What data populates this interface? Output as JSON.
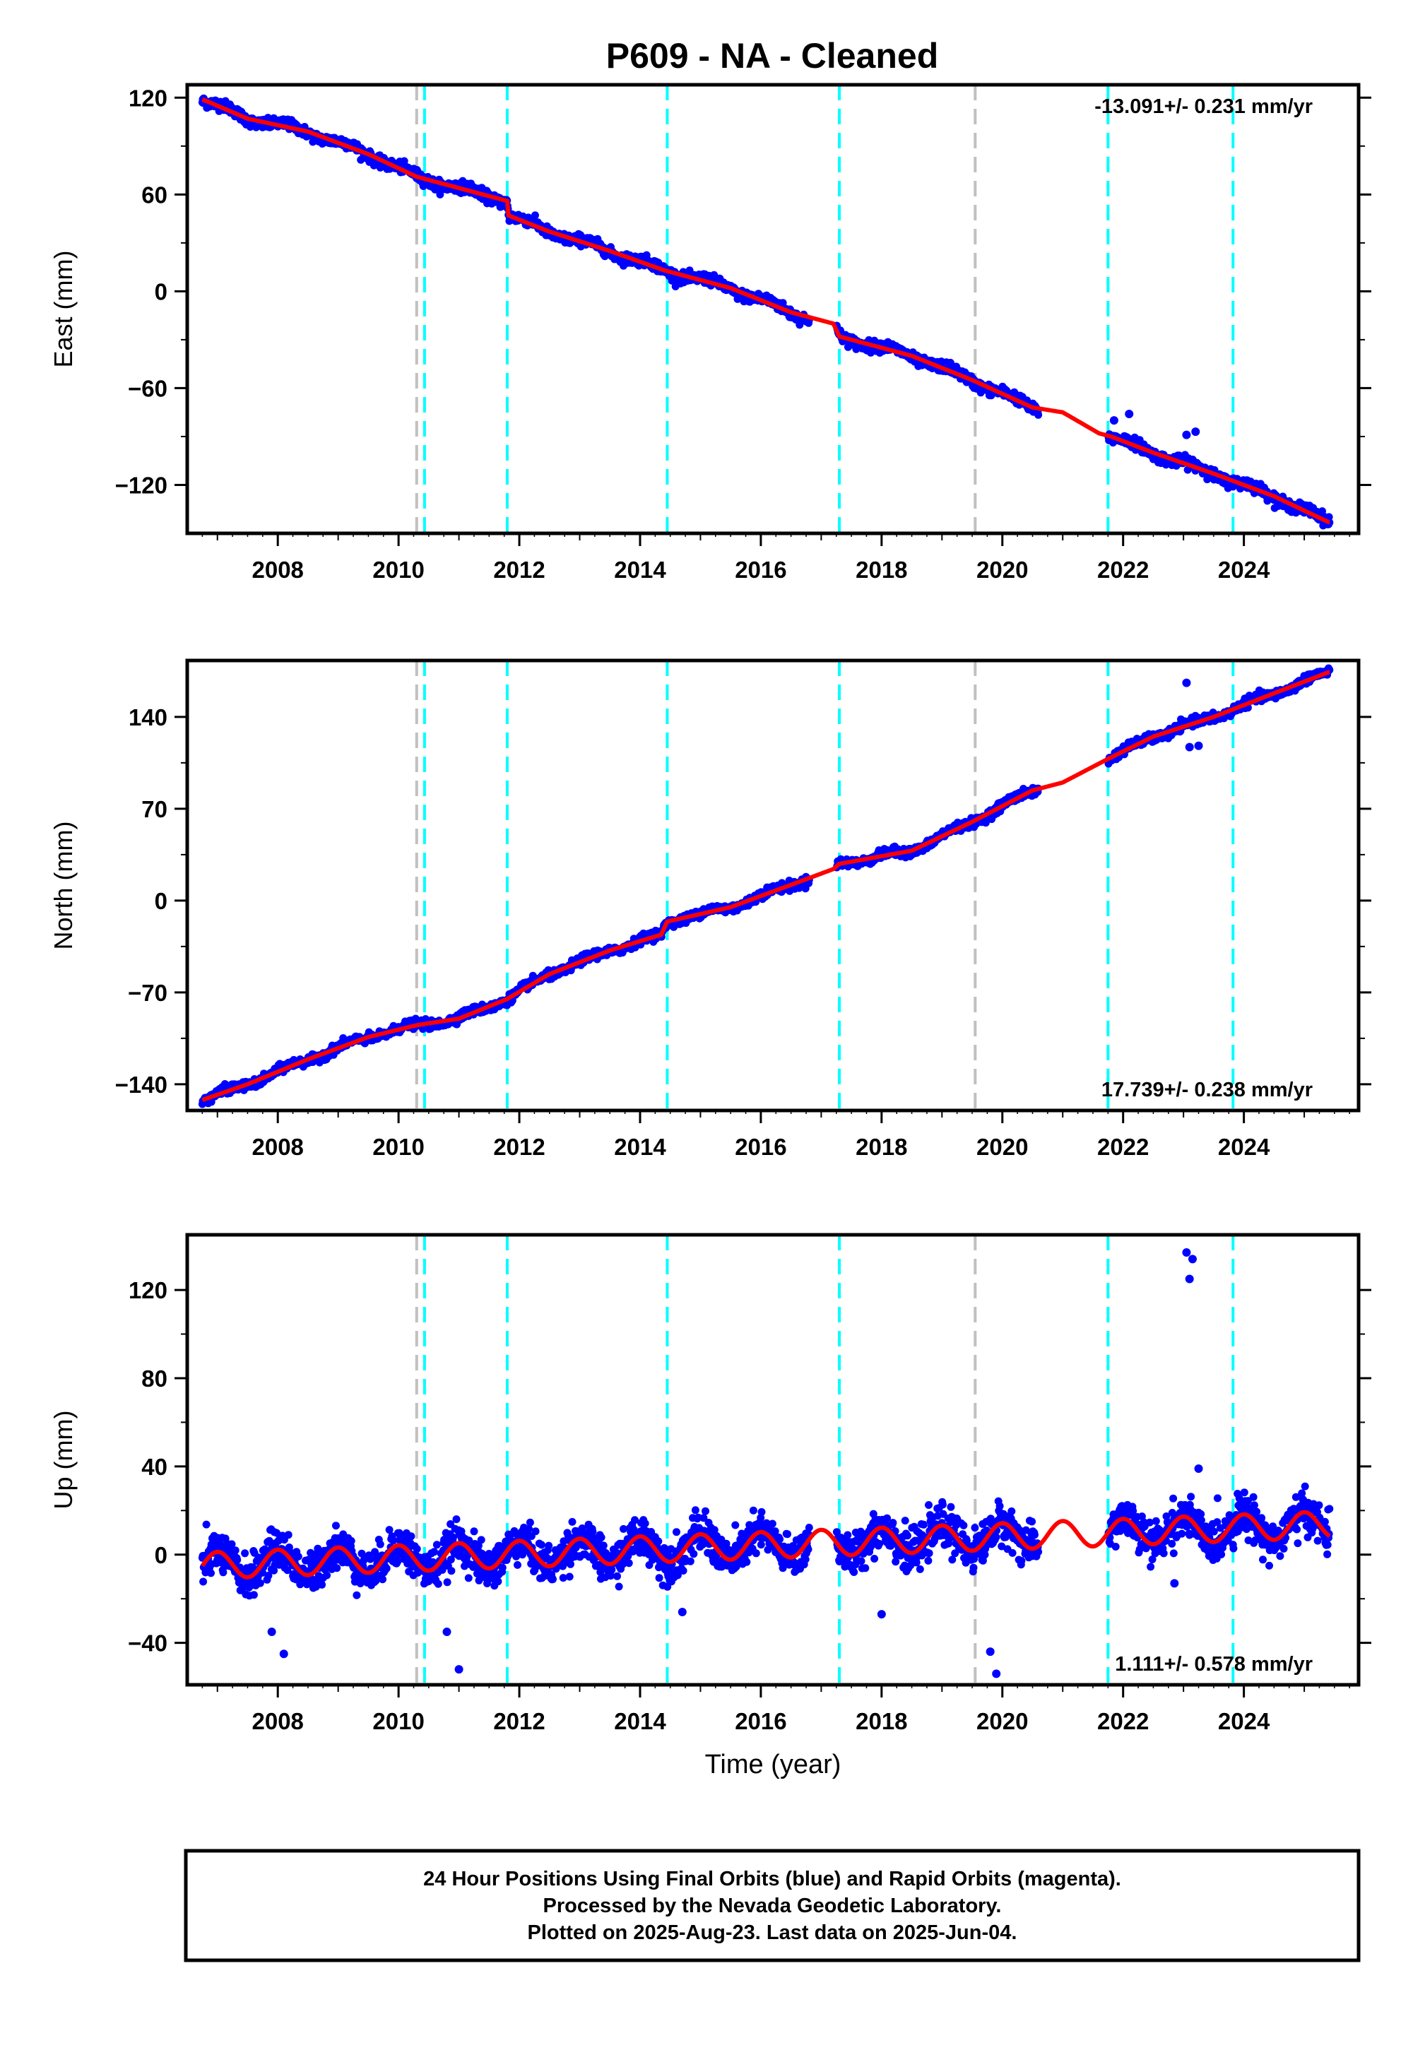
{
  "title": "P609  - NA - Cleaned",
  "colors": {
    "final_orbits": "#0000ff",
    "model": "#ff0000",
    "equipment_change": "#00ffff",
    "other_event": "#c0c0c0",
    "frame": "#000000"
  },
  "chart_data": [
    {
      "type": "scatter",
      "panel": "east",
      "ylabel": "East (mm)",
      "xlabel": "",
      "xlim": [
        2006.5,
        2025.9
      ],
      "ylim": [
        -150,
        128
      ],
      "yticks": [
        120,
        60,
        0,
        -60,
        -120
      ],
      "yticklabels": [
        "120",
        "60",
        "0",
        "−60",
        "−120"
      ],
      "xticks": [
        2008,
        2010,
        2012,
        2014,
        2016,
        2018,
        2020,
        2022,
        2024
      ],
      "xticklabels": [
        "2008",
        "2010",
        "2012",
        "2014",
        "2016",
        "2018",
        "2020",
        "2022",
        "2024"
      ],
      "rate_label": "-13.091+/- 0.231 mm/yr",
      "rate_position": "top-right",
      "model_points": [
        [
          2006.75,
          119
        ],
        [
          2007.5,
          107
        ],
        [
          2008.5,
          99
        ],
        [
          2009.5,
          85
        ],
        [
          2010.3,
          71
        ],
        [
          2011.0,
          64
        ],
        [
          2011.8,
          56
        ],
        [
          2011.82,
          47
        ],
        [
          2012.5,
          37
        ],
        [
          2013.5,
          25
        ],
        [
          2014.4,
          13
        ],
        [
          2015.5,
          2
        ],
        [
          2016.5,
          -13
        ],
        [
          2017.2,
          -20
        ],
        [
          2017.3,
          -28
        ],
        [
          2018.5,
          -40
        ],
        [
          2019.5,
          -55
        ],
        [
          2020.5,
          -72
        ],
        [
          2021.0,
          -75
        ],
        [
          2021.6,
          -88
        ],
        [
          2021.8,
          -90
        ],
        [
          2022.5,
          -100
        ],
        [
          2023.5,
          -113
        ],
        [
          2024.5,
          -127
        ],
        [
          2025.4,
          -143
        ]
      ],
      "outliers": [
        [
          2021.85,
          -80
        ],
        [
          2022.1,
          -76
        ],
        [
          2023.05,
          -89
        ],
        [
          2023.2,
          -87
        ]
      ],
      "gaps": [
        [
          2016.8,
          2017.25
        ],
        [
          2020.6,
          2021.75
        ]
      ],
      "grid": false
    },
    {
      "type": "scatter",
      "panel": "north",
      "ylabel": "North (mm)",
      "xlabel": "",
      "xlim": [
        2006.5,
        2025.9
      ],
      "ylim": [
        -160,
        183
      ],
      "yticks": [
        140,
        70,
        0,
        -70,
        -140
      ],
      "yticklabels": [
        "140",
        "70",
        "0",
        "−70",
        "−140"
      ],
      "xticks": [
        2008,
        2010,
        2012,
        2014,
        2016,
        2018,
        2020,
        2022,
        2024
      ],
      "xticklabels": [
        "2008",
        "2010",
        "2012",
        "2014",
        "2016",
        "2018",
        "2020",
        "2022",
        "2024"
      ],
      "rate_label": "17.739+/- 0.238 mm/yr",
      "rate_position": "bottom-right",
      "model_points": [
        [
          2006.75,
          -152
        ],
        [
          2007.5,
          -140
        ],
        [
          2008.5,
          -121
        ],
        [
          2009.5,
          -104
        ],
        [
          2010.3,
          -95
        ],
        [
          2011.0,
          -90
        ],
        [
          2011.8,
          -75
        ],
        [
          2012.5,
          -56
        ],
        [
          2013.5,
          -38
        ],
        [
          2014.35,
          -26
        ],
        [
          2014.45,
          -16
        ],
        [
          2015.5,
          -5
        ],
        [
          2016.5,
          12
        ],
        [
          2017.2,
          24
        ],
        [
          2017.3,
          28
        ],
        [
          2018.5,
          38
        ],
        [
          2019.5,
          60
        ],
        [
          2020.5,
          84
        ],
        [
          2021.0,
          90
        ],
        [
          2021.75,
          108
        ],
        [
          2022.5,
          125
        ],
        [
          2023.5,
          140
        ],
        [
          2024.5,
          158
        ],
        [
          2025.4,
          174
        ]
      ],
      "outliers": [
        [
          2023.05,
          166
        ],
        [
          2023.1,
          117
        ],
        [
          2023.25,
          118
        ]
      ],
      "gaps": [
        [
          2016.8,
          2017.25
        ],
        [
          2020.6,
          2021.75
        ]
      ],
      "grid": false
    },
    {
      "type": "scatter",
      "panel": "up",
      "ylabel": "Up (mm)",
      "xlabel": "Time (year)",
      "xlim": [
        2006.5,
        2025.9
      ],
      "ylim": [
        -59,
        145
      ],
      "yticks": [
        120,
        80,
        40,
        0,
        -40
      ],
      "yticklabels": [
        "120",
        "80",
        "40",
        "0",
        "−40"
      ],
      "xticks": [
        2008,
        2010,
        2012,
        2014,
        2016,
        2018,
        2020,
        2022,
        2024
      ],
      "xticklabels": [
        "2008",
        "2010",
        "2012",
        "2014",
        "2016",
        "2018",
        "2020",
        "2022",
        "2024"
      ],
      "rate_label": "1.111+/- 0.578 mm/yr",
      "rate_position": "bottom-right",
      "seasonal_amplitude_mm": 6,
      "trend_start_mm": -5,
      "trend_mm_per_yr": 1.11,
      "outliers": [
        [
          2007.9,
          -35
        ],
        [
          2008.1,
          -45
        ],
        [
          2010.8,
          -35
        ],
        [
          2011.0,
          -52
        ],
        [
          2014.7,
          -26
        ],
        [
          2018.0,
          -27
        ],
        [
          2019.8,
          -44
        ],
        [
          2019.9,
          -54
        ],
        [
          2023.05,
          137
        ],
        [
          2023.15,
          134
        ],
        [
          2023.1,
          125
        ],
        [
          2023.25,
          39
        ],
        [
          2022.85,
          -13
        ]
      ],
      "gaps": [
        [
          2016.8,
          2017.25
        ],
        [
          2020.6,
          2021.75
        ]
      ],
      "grid": false
    }
  ],
  "events": [
    {
      "year": 2010.3,
      "kind": "other"
    },
    {
      "year": 2010.43,
      "kind": "equipment"
    },
    {
      "year": 2011.8,
      "kind": "equipment"
    },
    {
      "year": 2014.45,
      "kind": "equipment"
    },
    {
      "year": 2017.3,
      "kind": "equipment"
    },
    {
      "year": 2019.55,
      "kind": "other"
    },
    {
      "year": 2021.75,
      "kind": "equipment"
    },
    {
      "year": 2023.82,
      "kind": "equipment"
    }
  ],
  "footer": {
    "line1": "24 Hour Positions Using Final Orbits (blue) and Rapid Orbits (magenta).",
    "line2": "Processed by the Nevada Geodetic Laboratory.",
    "line3": "Plotted on 2025-Aug-23. Last data on 2025-Jun-04."
  }
}
